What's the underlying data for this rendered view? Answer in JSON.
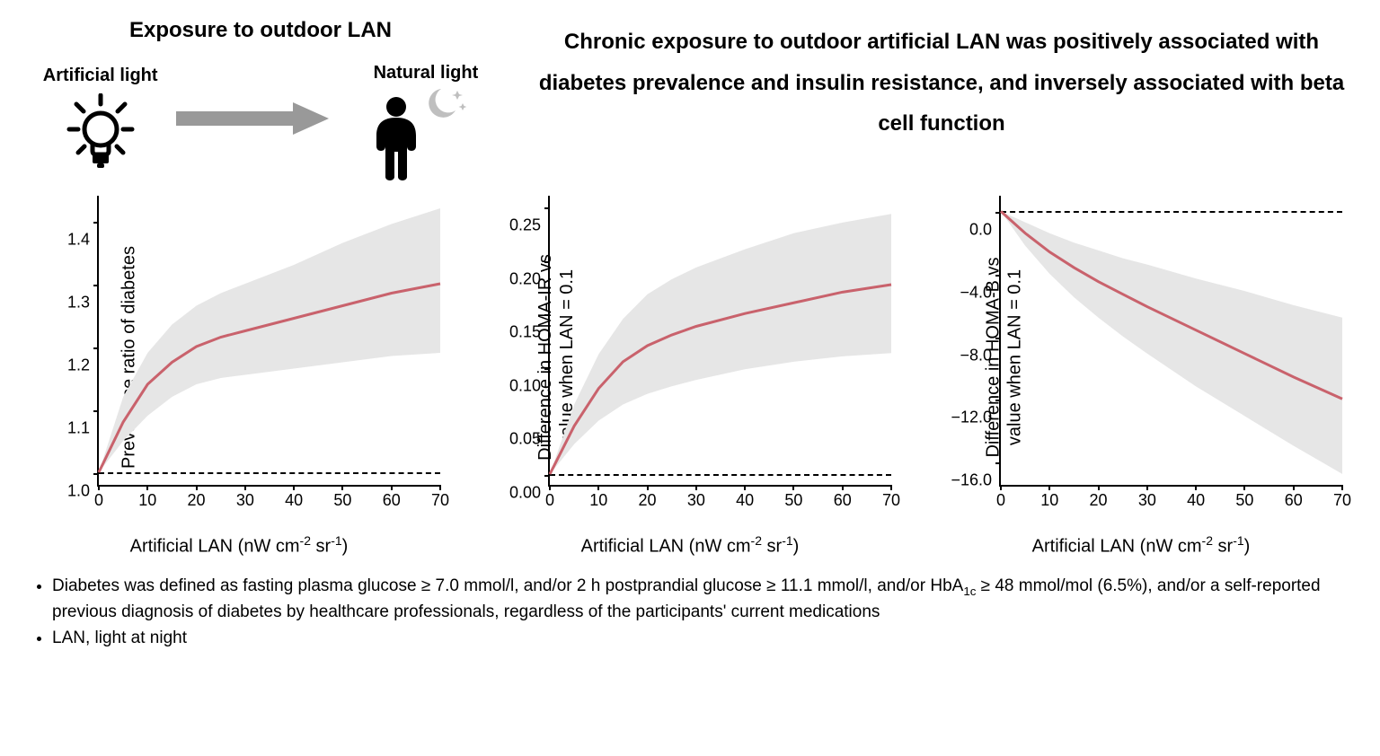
{
  "header": {
    "title_left": "Exposure to outdoor LAN",
    "title_right": "Chronic exposure to outdoor artificial LAN was positively associated with diabetes prevalence and insulin resistance, and inversely associated with beta cell function",
    "label_artificial": "Artificial light",
    "label_natural": "Natural light"
  },
  "icons": {
    "bulb_color": "#000000",
    "arrow_color": "#999999",
    "person_color": "#000000",
    "moon_color": "#bfbfbf"
  },
  "styles": {
    "line_color": "#c9626c",
    "line_width": 3,
    "ci_fill": "#e6e6e6",
    "axis_color": "#000000",
    "background": "#ffffff",
    "font_family": "Arial",
    "label_fontsize": 20,
    "tick_fontsize": 18,
    "dash_color": "#000000"
  },
  "charts": [
    {
      "id": "diabetes",
      "type": "line",
      "xlabel_html": "Artificial LAN (nW cm<span class='sup'>-2</span> sr<span class='sup'>-1</span>)",
      "ylabel_html": "Prevalence ratio of diabetes",
      "xlim": [
        0,
        70
      ],
      "xticks": [
        0,
        10,
        20,
        30,
        40,
        50,
        60,
        70
      ],
      "ylim": [
        0.98,
        1.44
      ],
      "yticks": [
        1.0,
        1.1,
        1.2,
        1.3,
        1.4
      ],
      "ytick_labels": [
        "1.0",
        "1.1",
        "1.2",
        "1.3",
        "1.4"
      ],
      "dash_at": 1.0,
      "x": [
        0,
        5,
        10,
        15,
        20,
        25,
        30,
        40,
        50,
        60,
        70
      ],
      "y": [
        1.0,
        1.08,
        1.14,
        1.175,
        1.2,
        1.215,
        1.225,
        1.245,
        1.265,
        1.285,
        1.3
      ],
      "y_lo": [
        1.0,
        1.05,
        1.09,
        1.12,
        1.14,
        1.15,
        1.155,
        1.165,
        1.175,
        1.185,
        1.19
      ],
      "y_hi": [
        1.0,
        1.12,
        1.19,
        1.235,
        1.265,
        1.285,
        1.3,
        1.33,
        1.365,
        1.395,
        1.42
      ]
    },
    {
      "id": "homa_ir",
      "type": "line",
      "xlabel_html": "Artificial LAN (nW cm<span class='sup'>-2</span> sr<span class='sup'>-1</span>)",
      "ylabel_html": "Difference in HOMA-IR vs<br>value when LAN = 0.1",
      "xlim": [
        0,
        70
      ],
      "xticks": [
        0,
        10,
        20,
        30,
        40,
        50,
        60,
        70
      ],
      "ylim": [
        -0.01,
        0.26
      ],
      "yticks": [
        0.0,
        0.05,
        0.1,
        0.15,
        0.2,
        0.25
      ],
      "ytick_labels": [
        "0.00",
        "0.05",
        "0.10",
        "0.15",
        "0.20",
        "0.25"
      ],
      "dash_at": 0.0,
      "x": [
        0,
        5,
        10,
        15,
        20,
        25,
        30,
        40,
        50,
        60,
        70
      ],
      "y": [
        0.0,
        0.045,
        0.08,
        0.105,
        0.12,
        0.13,
        0.138,
        0.15,
        0.16,
        0.17,
        0.177
      ],
      "y_lo": [
        0.0,
        0.028,
        0.05,
        0.065,
        0.075,
        0.082,
        0.088,
        0.098,
        0.105,
        0.11,
        0.113
      ],
      "y_hi": [
        0.0,
        0.065,
        0.112,
        0.145,
        0.168,
        0.182,
        0.193,
        0.21,
        0.225,
        0.235,
        0.243
      ]
    },
    {
      "id": "homa_b",
      "type": "line",
      "xlabel_html": "Artificial LAN (nW cm<span class='sup'>-2</span> sr<span class='sup'>-1</span>)",
      "ylabel_html": "Difference in HOMA-B vs<br>value when LAN = 0.1",
      "xlim": [
        0,
        70
      ],
      "xticks": [
        0,
        10,
        20,
        30,
        40,
        50,
        60,
        70
      ],
      "ylim": [
        -17.5,
        1.0
      ],
      "yticks": [
        0.0,
        -4.0,
        -8.0,
        -12.0,
        -16.0
      ],
      "ytick_labels": [
        "0.0",
        "−4.0",
        "−8.0",
        "−12.0",
        "−16.0"
      ],
      "dash_at": 0.0,
      "x": [
        0,
        5,
        10,
        15,
        20,
        25,
        30,
        40,
        50,
        60,
        70
      ],
      "y": [
        0.0,
        -1.4,
        -2.6,
        -3.6,
        -4.5,
        -5.3,
        -6.1,
        -7.6,
        -9.1,
        -10.6,
        -12.0
      ],
      "y_lo": [
        0.0,
        -2.2,
        -4.0,
        -5.5,
        -6.8,
        -8.0,
        -9.1,
        -11.2,
        -13.1,
        -15.0,
        -16.8
      ],
      "y_hi": [
        0.0,
        -0.7,
        -1.4,
        -2.0,
        -2.5,
        -3.0,
        -3.4,
        -4.3,
        -5.1,
        -6.0,
        -6.8
      ]
    }
  ],
  "footnotes": [
    "Diabetes was defined as fasting plasma glucose ≥ 7.0 mmol/l, and/or 2 h postprandial glucose ≥ 11.1 mmol/l, and/or HbA<span class='sub'>1c</span> ≥ 48 mmol/mol (6.5%), and/or a self-reported previous diagnosis of diabetes by healthcare professionals, regardless of the participants' current medications",
    "LAN, light at night"
  ]
}
